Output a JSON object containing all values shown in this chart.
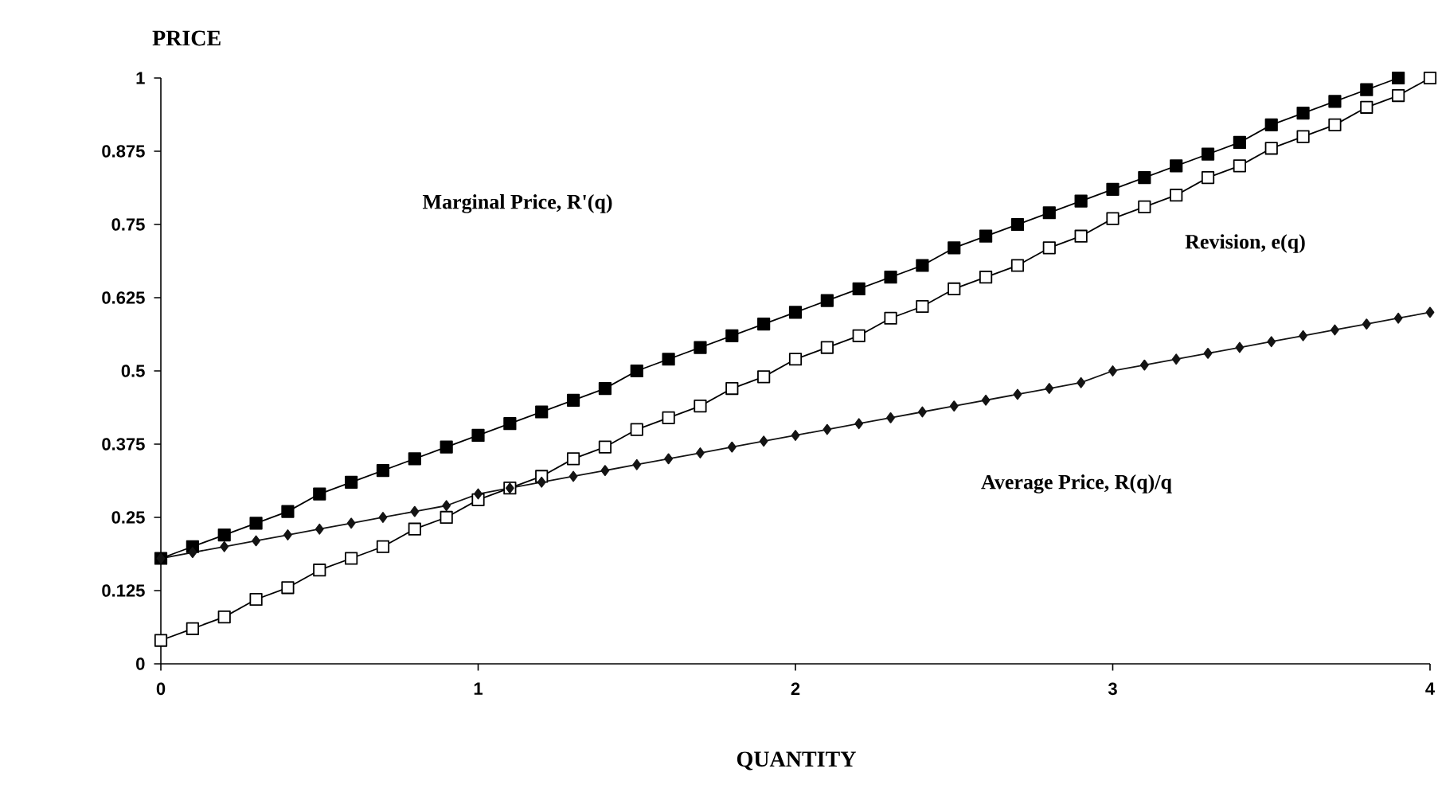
{
  "chart_data": {
    "type": "line",
    "xlabel": "QUANTITY",
    "ylabel": "PRICE",
    "x": [
      0,
      0.1,
      0.2,
      0.3,
      0.4,
      0.5,
      0.6,
      0.7,
      0.8,
      0.9,
      1,
      1.1,
      1.2,
      1.3,
      1.4,
      1.5,
      1.6,
      1.7,
      1.8,
      1.9,
      2,
      2.1,
      2.2,
      2.3,
      2.4,
      2.5,
      2.6,
      2.7,
      2.8,
      2.9,
      3,
      3.1,
      3.2,
      3.3,
      3.4,
      3.5,
      3.6,
      3.7,
      3.8,
      3.9,
      4
    ],
    "series": [
      {
        "color": "#000000",
        "marker": "square",
        "values": [
          0.18,
          0.2,
          0.22,
          0.24,
          0.26,
          0.29,
          0.31,
          0.33,
          0.35,
          0.37,
          0.39,
          0.41,
          0.43,
          0.45,
          0.47,
          0.5,
          0.52,
          0.54,
          0.56,
          0.58,
          0.6,
          0.62,
          0.64,
          0.66,
          0.68,
          0.71,
          0.73,
          0.75,
          0.77,
          0.79,
          0.81,
          0.83,
          0.85,
          0.87,
          0.89,
          0.92,
          0.94,
          0.96,
          0.98,
          1.0,
          null
        ]
      },
      {
        "color": "#ffffff",
        "marker": "square",
        "values": [
          0.04,
          0.06,
          0.08,
          0.11,
          0.13,
          0.16,
          0.18,
          0.2,
          0.23,
          0.25,
          0.28,
          0.3,
          0.32,
          0.35,
          0.37,
          0.4,
          0.42,
          0.44,
          0.47,
          0.49,
          0.52,
          0.54,
          0.56,
          0.59,
          0.61,
          0.64,
          0.66,
          0.68,
          0.71,
          0.73,
          0.76,
          0.78,
          0.8,
          0.83,
          0.85,
          0.88,
          0.9,
          0.92,
          0.95,
          0.97,
          1.0
        ]
      },
      {
        "color": "#141414",
        "marker": "diamond",
        "values": [
          0.18,
          0.19,
          0.2,
          0.21,
          0.22,
          0.23,
          0.24,
          0.25,
          0.26,
          0.27,
          0.29,
          0.3,
          0.31,
          0.32,
          0.33,
          0.34,
          0.35,
          0.36,
          0.37,
          0.38,
          0.39,
          0.4,
          0.41,
          0.42,
          0.43,
          0.44,
          0.45,
          0.46,
          0.47,
          0.48,
          0.5,
          0.51,
          0.52,
          0.53,
          0.54,
          0.55,
          0.56,
          0.57,
          0.58,
          0.59,
          0.6
        ]
      }
    ],
    "annotations": [
      "Marginal Price, R'(q)",
      "Revision, e(q)",
      "Average Price, R(q)/q"
    ],
    "xlim": [
      0,
      4
    ],
    "ylim": [
      0,
      1
    ],
    "xticks": [
      0,
      1,
      2,
      3,
      4
    ],
    "yticks": [
      0,
      0.125,
      0.25,
      0.375,
      0.5,
      0.625,
      0.75,
      0.875,
      1
    ],
    "grid": false,
    "line_style": "solid"
  }
}
